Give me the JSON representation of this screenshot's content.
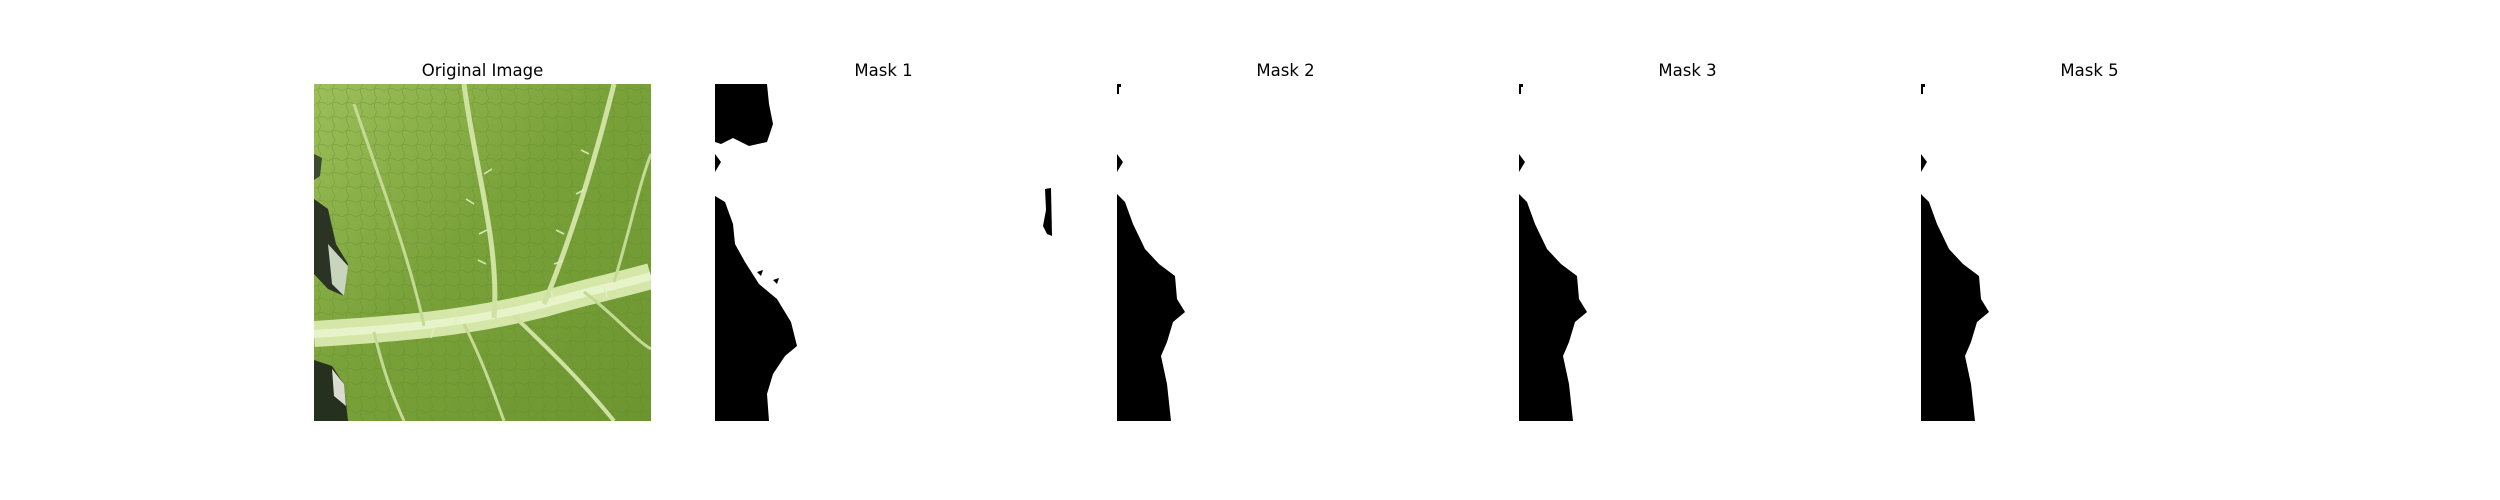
{
  "panels": [
    {
      "title": "Original Image"
    },
    {
      "title": "Mask 1"
    },
    {
      "title": "Mask 2"
    },
    {
      "title": "Mask 3"
    },
    {
      "title": "Mask 5"
    }
  ],
  "colors": {
    "background": "#ffffff",
    "mask_foreground": "#000000",
    "mask_background": "#ffffff",
    "leaf_base": "#7fa63a",
    "leaf_vein": "#d2e6a6"
  }
}
